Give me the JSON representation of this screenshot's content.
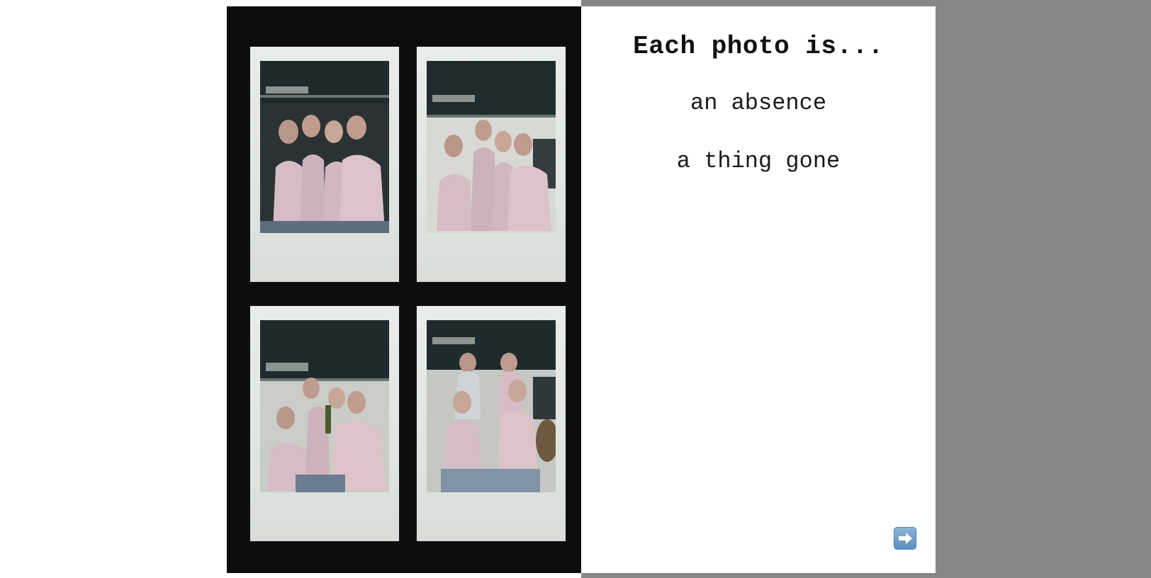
{
  "slide": {
    "heading": "Each photo is...",
    "lines": [
      "an absence",
      "a thing gone"
    ]
  },
  "photos": [
    {
      "name": "polaroid-1",
      "subject": "group of four friends posing"
    },
    {
      "name": "polaroid-2",
      "subject": "group of four friends posing"
    },
    {
      "name": "polaroid-3",
      "subject": "group of four friends posing"
    },
    {
      "name": "polaroid-4",
      "subject": "group of four friends posing"
    }
  ],
  "navigation": {
    "next_icon": "right-arrow-icon"
  },
  "colors": {
    "panel_background": "#0c0c0c",
    "side_background": "#878787",
    "button_blue": "#5a8fc2"
  }
}
